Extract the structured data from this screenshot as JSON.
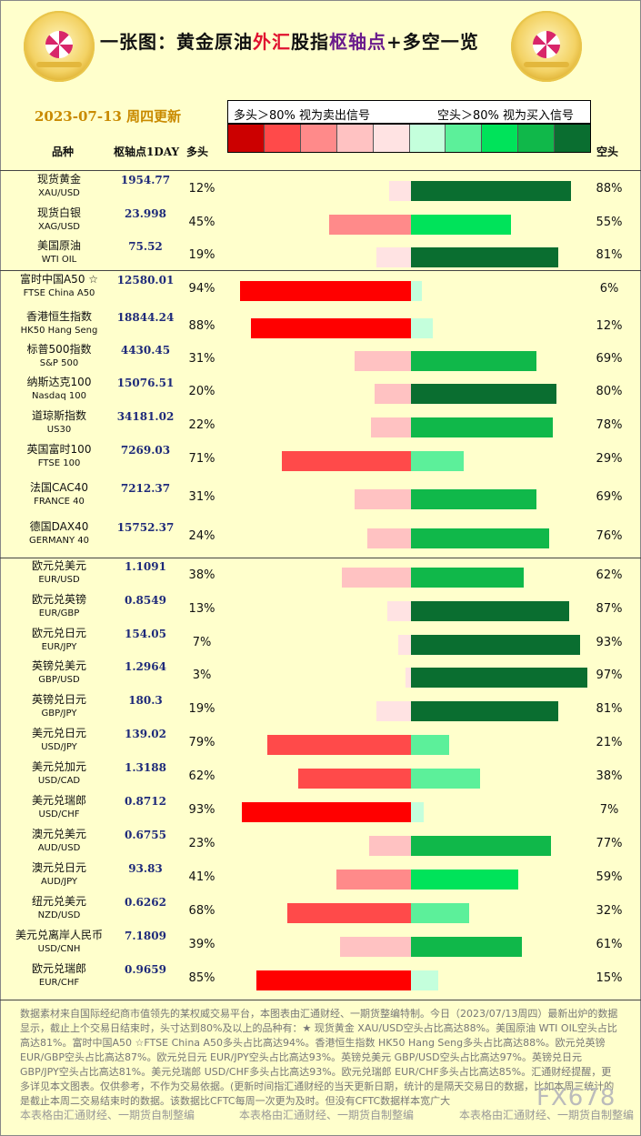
{
  "header": {
    "title_a": "一张图：黄金原油",
    "title_b": "外汇",
    "title_c": "股指",
    "title_d": "枢轴点",
    "title_e": "+多空一览",
    "date": "2023-07-13 周四更新",
    "signal_long": "多头＞80% 视为卖出信号",
    "signal_short": "空头＞80% 视为买入信号",
    "col_name": "品种",
    "col_pivot": "枢轴点1DAY",
    "col_long": "多头",
    "col_short": "空头"
  },
  "colors": {
    "scale": [
      "#cc0000",
      "#ff4a4a",
      "#ff8a8a",
      "#ffc2c2",
      "#ffe3e3",
      "#c4ffdc",
      "#5cf09a",
      "#00e35a",
      "#10b84a",
      "#0a6e30"
    ]
  },
  "chart_data": {
    "type": "bar",
    "x_range": [
      -100,
      100
    ],
    "rows": [
      {
        "name": "现货黄金",
        "sub": "XAU/USD",
        "pivot": "1954.77",
        "long": 12,
        "short": 88,
        "long_label": "12%",
        "short_label": "88%"
      },
      {
        "name": "现货白银",
        "sub": "XAG/USD",
        "pivot": "23.998",
        "long": 45,
        "short": 55,
        "long_label": "45%",
        "short_label": "55%"
      },
      {
        "name": "美国原油",
        "sub": "WTI OIL",
        "pivot": "75.52",
        "long": 19,
        "short": 81,
        "long_label": "19%",
        "short_label": "81%"
      },
      {
        "name": "富时中国A50 ☆",
        "sub": "FTSE China A50",
        "pivot": "12580.01",
        "long": 94,
        "short": 6,
        "long_label": "94%",
        "short_label": "6%"
      },
      {
        "name": "香港恒生指数",
        "sub": "HK50 Hang Seng",
        "pivot": "18844.24",
        "long": 88,
        "short": 12,
        "long_label": "88%",
        "short_label": "12%"
      },
      {
        "name": "标普500指数",
        "sub": "S&P 500",
        "pivot": "4430.45",
        "long": 31,
        "short": 69,
        "long_label": "31%",
        "short_label": "69%"
      },
      {
        "name": "纳斯达克100",
        "sub": "Nasdaq 100",
        "pivot": "15076.51",
        "long": 20,
        "short": 80,
        "long_label": "20%",
        "short_label": "80%"
      },
      {
        "name": "道琼斯指数",
        "sub": "US30",
        "pivot": "34181.02",
        "long": 22,
        "short": 78,
        "long_label": "22%",
        "short_label": "78%"
      },
      {
        "name": "英国富时100",
        "sub": "FTSE 100",
        "pivot": "7269.03",
        "long": 71,
        "short": 29,
        "long_label": "71%",
        "short_label": "29%"
      },
      {
        "name": "法国CAC40",
        "sub": "FRANCE 40",
        "pivot": "7212.37",
        "long": 31,
        "short": 69,
        "long_label": "31%",
        "short_label": "69%"
      },
      {
        "name": "德国DAX40",
        "sub": "GERMANY 40",
        "pivot": "15752.37",
        "long": 24,
        "short": 76,
        "long_label": "24%",
        "short_label": "76%"
      },
      {
        "name": "欧元兑美元",
        "sub": "EUR/USD",
        "pivot": "1.1091",
        "long": 38,
        "short": 62,
        "long_label": "38%",
        "short_label": "62%"
      },
      {
        "name": "欧元兑英镑",
        "sub": "EUR/GBP",
        "pivot": "0.8549",
        "long": 13,
        "short": 87,
        "long_label": "13%",
        "short_label": "87%"
      },
      {
        "name": "欧元兑日元",
        "sub": "EUR/JPY",
        "pivot": "154.05",
        "long": 7,
        "short": 93,
        "long_label": "7%",
        "short_label": "93%"
      },
      {
        "name": "英镑兑美元",
        "sub": "GBP/USD",
        "pivot": "1.2964",
        "long": 3,
        "short": 97,
        "long_label": "3%",
        "short_label": "97%"
      },
      {
        "name": "英镑兑日元",
        "sub": "GBP/JPY",
        "pivot": "180.3",
        "long": 19,
        "short": 81,
        "long_label": "19%",
        "short_label": "81%"
      },
      {
        "name": "美元兑日元",
        "sub": "USD/JPY",
        "pivot": "139.02",
        "long": 79,
        "short": 21,
        "long_label": "79%",
        "short_label": "21%"
      },
      {
        "name": "美元兑加元",
        "sub": "USD/CAD",
        "pivot": "1.3188",
        "long": 62,
        "short": 38,
        "long_label": "62%",
        "short_label": "38%"
      },
      {
        "name": "美元兑瑞郎",
        "sub": "USD/CHF",
        "pivot": "0.8712",
        "long": 93,
        "short": 7,
        "long_label": "93%",
        "short_label": "7%"
      },
      {
        "name": "澳元兑美元",
        "sub": "AUD/USD",
        "pivot": "0.6755",
        "long": 23,
        "short": 77,
        "long_label": "23%",
        "short_label": "77%"
      },
      {
        "name": "澳元兑日元",
        "sub": "AUD/JPY",
        "pivot": "93.83",
        "long": 41,
        "short": 59,
        "long_label": "41%",
        "short_label": "59%"
      },
      {
        "name": "纽元兑美元",
        "sub": "NZD/USD",
        "pivot": "0.6262",
        "long": 68,
        "short": 32,
        "long_label": "68%",
        "short_label": "32%"
      },
      {
        "name": "美元兑离岸人民币",
        "sub": "USD/CNH",
        "pivot": "7.1809",
        "long": 39,
        "short": 61,
        "long_label": "39%",
        "short_label": "61%"
      },
      {
        "name": "欧元兑瑞郎",
        "sub": "EUR/CHF",
        "pivot": "0.9659",
        "long": 85,
        "short": 15,
        "long_label": "85%",
        "short_label": "15%"
      }
    ]
  },
  "footer": {
    "text": "数据素材来自国际经纪商市值领先的某权威交易平台，本图表由汇通财经、一期货整编特制。今日（2023/07/13周四）最新出炉的数据显示，截止上个交易日结束时，头寸达到80%及以上的品种有：★ 现货黄金 XAU/USD空头占比高达88%。美国原油 WTI OIL空头占比高达81%。富时中国A50 ☆FTSE China A50多头占比高达94%。香港恒生指数 HK50 Hang Seng多头占比高达88%。欧元兑英镑 EUR/GBP空头占比高达87%。欧元兑日元 EUR/JPY空头占比高达93%。英镑兑美元 GBP/USD空头占比高达97%。英镑兑日元 GBP/JPY空头占比高达81%。美元兑瑞郎 USD/CHF多头占比高达93%。欧元兑瑞郎 EUR/CHF多头占比高达85%。汇通财经提醒，更多详见本文图表。仅供参考，不作为交易依据。(更新时间指汇通财经的当天更新日期，统计的是隔天交易日的数据，比如本周三统计的是截止本周二交易结束时的数据。该数据比CFTC每周一次更为及时。但没有CFTC数据样本宽广大",
    "credit": "本表格由汇通财经、一期货自制整编",
    "watermark": "FX678"
  }
}
